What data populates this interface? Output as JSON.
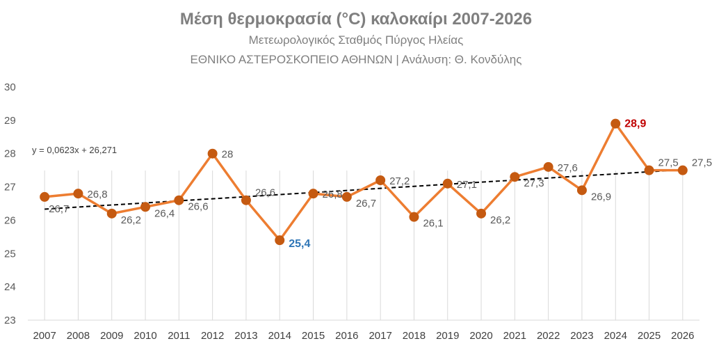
{
  "chart_data": {
    "type": "line",
    "title": "Μέση θερμοκρασία (°C) καλοκαίρι 2007-2026",
    "subtitle": "Μετεωρολογικός Σταθμός Πύργος Ηλείας",
    "subtitle2": "ΕΘΝΙΚΟ ΑΣΤΕΡΟΣΚΟΠΕΙΟ ΑΘΗΝΩΝ | Ανάλυση: Θ. Κονδύλης",
    "xlabel": "",
    "ylabel": "",
    "categories": [
      "2007",
      "2008",
      "2009",
      "2010",
      "2011",
      "2012",
      "2013",
      "2014",
      "2015",
      "2016",
      "2017",
      "2018",
      "2019",
      "2020",
      "2021",
      "2022",
      "2023",
      "2024",
      "2025",
      "2026"
    ],
    "values": [
      26.7,
      26.8,
      26.2,
      26.4,
      26.6,
      28,
      26.6,
      25.4,
      26.8,
      26.7,
      27.2,
      26.1,
      27.1,
      26.2,
      27.3,
      27.6,
      26.9,
      28.9,
      27.5,
      27.5
    ],
    "data_labels": [
      "26,7",
      "26,8",
      "26,2",
      "26,4",
      "26,6",
      "28",
      "26,6",
      "25,4",
      "26,8",
      "26,7",
      "27,2",
      "26,1",
      "27,1",
      "26,2",
      "27,3",
      "27,6",
      "26,9",
      "28,9",
      "27,5",
      "27,5"
    ],
    "ylim": [
      23,
      30
    ],
    "yticks": [
      23,
      24,
      25,
      26,
      27,
      28,
      29,
      30
    ],
    "grid": "vertical",
    "legend": "none",
    "trendline": {
      "equation": "y = 0,0623x + 26,271",
      "slope": 0.0623,
      "intercept": 26.271
    },
    "colors": {
      "line": "#ED7D31",
      "marker": "#C55A11",
      "max_label": "#C00000",
      "min_label": "#2E75B6",
      "trend": "#000000",
      "text": "#595959",
      "grid": "#D9D9D9"
    }
  }
}
